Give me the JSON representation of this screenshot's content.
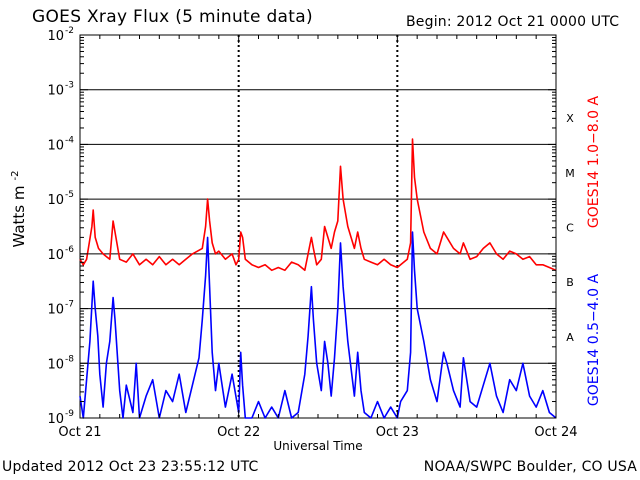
{
  "header": {
    "title": "GOES Xray Flux (5 minute data)",
    "begin": "Begin:  2012 Oct 21 0000 UTC"
  },
  "footer": {
    "updated": "Updated 2012 Oct 23 23:55:12 UTC",
    "credit": "NOAA/SWPC Boulder, CO USA"
  },
  "chart_data": {
    "type": "line",
    "title": "GOES Xray Flux (5 minute data)",
    "xlabel": "Universal Time",
    "ylabel": "Watts m",
    "ylabel_superscript": "-2",
    "y_scale": "log",
    "ylim": [
      1e-09,
      0.01
    ],
    "xlim": [
      0,
      72
    ],
    "x_unit": "hours since 2012 Oct 21 0000 UTC",
    "x_ticks": [
      {
        "label": "Oct 21",
        "hour": 0
      },
      {
        "label": "Oct 22",
        "hour": 24
      },
      {
        "label": "Oct 23",
        "hour": 48
      },
      {
        "label": "Oct 24",
        "hour": 72
      }
    ],
    "y_ticks": [
      {
        "mantissa": "10",
        "exp": "-9"
      },
      {
        "mantissa": "10",
        "exp": "-8"
      },
      {
        "mantissa": "10",
        "exp": "-7"
      },
      {
        "mantissa": "10",
        "exp": "-6"
      },
      {
        "mantissa": "10",
        "exp": "-5"
      },
      {
        "mantissa": "10",
        "exp": "-4"
      },
      {
        "mantissa": "10",
        "exp": "-3"
      },
      {
        "mantissa": "10",
        "exp": "-2"
      }
    ],
    "flare_classes": [
      "A",
      "B",
      "C",
      "M",
      "X"
    ],
    "grid": true,
    "series": [
      {
        "name": "GOES14 1.0−8.0 A",
        "color": "#ff0000",
        "log10_values": [
          [
            0.0,
            -6.1
          ],
          [
            0.5,
            -6.2
          ],
          [
            1.0,
            -6.1
          ],
          [
            1.8,
            -5.5
          ],
          [
            2.0,
            -5.2
          ],
          [
            2.3,
            -5.7
          ],
          [
            2.8,
            -5.9
          ],
          [
            3.5,
            -6.0
          ],
          [
            4.0,
            -6.05
          ],
          [
            4.5,
            -6.1
          ],
          [
            5.0,
            -5.4
          ],
          [
            5.3,
            -5.6
          ],
          [
            6.0,
            -6.1
          ],
          [
            7.0,
            -6.15
          ],
          [
            8.0,
            -6.0
          ],
          [
            9.0,
            -6.2
          ],
          [
            10.0,
            -6.1
          ],
          [
            11.0,
            -6.2
          ],
          [
            12.0,
            -6.05
          ],
          [
            13.0,
            -6.2
          ],
          [
            14.0,
            -6.1
          ],
          [
            15.0,
            -6.2
          ],
          [
            16.0,
            -6.1
          ],
          [
            17.0,
            -6.0
          ],
          [
            18.5,
            -5.9
          ],
          [
            19.0,
            -5.5
          ],
          [
            19.3,
            -5.0
          ],
          [
            19.6,
            -5.4
          ],
          [
            20.0,
            -5.8
          ],
          [
            20.5,
            -6.0
          ],
          [
            21.0,
            -5.95
          ],
          [
            22.0,
            -6.1
          ],
          [
            23.0,
            -6.0
          ],
          [
            23.6,
            -6.2
          ],
          [
            24.0,
            -6.1
          ],
          [
            24.3,
            -5.6
          ],
          [
            24.6,
            -5.7
          ],
          [
            25.0,
            -6.1
          ],
          [
            26.0,
            -6.2
          ],
          [
            27.0,
            -6.25
          ],
          [
            28.0,
            -6.2
          ],
          [
            29.0,
            -6.3
          ],
          [
            30.0,
            -6.25
          ],
          [
            31.0,
            -6.3
          ],
          [
            32.0,
            -6.15
          ],
          [
            33.0,
            -6.2
          ],
          [
            34.0,
            -6.3
          ],
          [
            34.5,
            -6.0
          ],
          [
            35.0,
            -5.7
          ],
          [
            35.3,
            -5.9
          ],
          [
            35.8,
            -6.2
          ],
          [
            36.5,
            -6.1
          ],
          [
            37.0,
            -5.5
          ],
          [
            37.5,
            -5.7
          ],
          [
            38.0,
            -5.9
          ],
          [
            38.5,
            -5.6
          ],
          [
            39.0,
            -5.4
          ],
          [
            39.4,
            -4.4
          ],
          [
            39.8,
            -5.0
          ],
          [
            40.5,
            -5.5
          ],
          [
            41.5,
            -5.9
          ],
          [
            42.0,
            -5.6
          ],
          [
            42.5,
            -5.9
          ],
          [
            43.0,
            -6.1
          ],
          [
            44.0,
            -6.15
          ],
          [
            45.0,
            -6.2
          ],
          [
            46.0,
            -6.1
          ],
          [
            47.0,
            -6.2
          ],
          [
            48.0,
            -6.25
          ],
          [
            48.5,
            -6.2
          ],
          [
            49.5,
            -6.1
          ],
          [
            50.0,
            -5.8
          ],
          [
            50.3,
            -3.9
          ],
          [
            50.6,
            -4.6
          ],
          [
            51.0,
            -5.0
          ],
          [
            52.0,
            -5.6
          ],
          [
            53.0,
            -5.9
          ],
          [
            54.0,
            -6.0
          ],
          [
            55.0,
            -5.6
          ],
          [
            55.5,
            -5.7
          ],
          [
            56.5,
            -5.9
          ],
          [
            57.5,
            -6.0
          ],
          [
            58.0,
            -5.8
          ],
          [
            59.0,
            -6.1
          ],
          [
            60.0,
            -6.05
          ],
          [
            61.0,
            -5.9
          ],
          [
            62.0,
            -5.8
          ],
          [
            63.0,
            -6.0
          ],
          [
            64.0,
            -6.1
          ],
          [
            65.0,
            -5.95
          ],
          [
            66.0,
            -6.0
          ],
          [
            67.0,
            -6.1
          ],
          [
            68.0,
            -6.05
          ],
          [
            69.0,
            -6.2
          ],
          [
            70.0,
            -6.2
          ],
          [
            71.0,
            -6.25
          ],
          [
            72.0,
            -6.3
          ]
        ]
      },
      {
        "name": "GOES14 0.5−4.0 A",
        "color": "#0000ff",
        "log10_values": [
          [
            0.0,
            -8.6
          ],
          [
            0.5,
            -9.0
          ],
          [
            1.0,
            -8.3
          ],
          [
            1.5,
            -7.6
          ],
          [
            2.0,
            -6.5
          ],
          [
            2.3,
            -7.0
          ],
          [
            2.7,
            -7.5
          ],
          [
            3.0,
            -8.2
          ],
          [
            3.5,
            -8.8
          ],
          [
            4.0,
            -8.0
          ],
          [
            4.5,
            -7.6
          ],
          [
            5.0,
            -6.8
          ],
          [
            5.3,
            -7.2
          ],
          [
            6.0,
            -8.5
          ],
          [
            6.5,
            -9.0
          ],
          [
            7.0,
            -8.4
          ],
          [
            8.0,
            -8.9
          ],
          [
            8.5,
            -8.0
          ],
          [
            9.0,
            -9.0
          ],
          [
            10.0,
            -8.6
          ],
          [
            11.0,
            -8.3
          ],
          [
            12.0,
            -9.0
          ],
          [
            13.0,
            -8.5
          ],
          [
            14.0,
            -8.7
          ],
          [
            15.0,
            -8.2
          ],
          [
            16.0,
            -8.9
          ],
          [
            17.0,
            -8.4
          ],
          [
            18.0,
            -7.9
          ],
          [
            18.5,
            -7.2
          ],
          [
            19.0,
            -6.4
          ],
          [
            19.3,
            -5.7
          ],
          [
            19.6,
            -6.6
          ],
          [
            20.0,
            -7.8
          ],
          [
            20.5,
            -8.5
          ],
          [
            21.0,
            -8.0
          ],
          [
            22.0,
            -8.8
          ],
          [
            23.0,
            -8.2
          ],
          [
            24.0,
            -8.9
          ],
          [
            24.3,
            -7.8
          ],
          [
            24.6,
            -8.4
          ],
          [
            25.0,
            -9.0
          ],
          [
            26.0,
            -9.0
          ],
          [
            27.0,
            -8.7
          ],
          [
            28.0,
            -9.0
          ],
          [
            29.0,
            -8.8
          ],
          [
            30.0,
            -9.0
          ],
          [
            31.0,
            -8.5
          ],
          [
            32.0,
            -9.0
          ],
          [
            33.0,
            -8.9
          ],
          [
            34.0,
            -8.2
          ],
          [
            34.5,
            -7.5
          ],
          [
            35.0,
            -6.6
          ],
          [
            35.3,
            -7.2
          ],
          [
            35.8,
            -8.0
          ],
          [
            36.5,
            -8.5
          ],
          [
            37.0,
            -7.6
          ],
          [
            37.5,
            -8.0
          ],
          [
            38.0,
            -8.6
          ],
          [
            38.5,
            -7.9
          ],
          [
            39.0,
            -7.0
          ],
          [
            39.4,
            -5.8
          ],
          [
            39.8,
            -6.6
          ],
          [
            40.5,
            -7.6
          ],
          [
            41.5,
            -8.6
          ],
          [
            42.0,
            -7.8
          ],
          [
            42.5,
            -8.5
          ],
          [
            43.0,
            -8.9
          ],
          [
            44.0,
            -9.0
          ],
          [
            45.0,
            -8.7
          ],
          [
            46.0,
            -9.0
          ],
          [
            47.0,
            -8.8
          ],
          [
            48.0,
            -9.0
          ],
          [
            48.5,
            -8.7
          ],
          [
            49.5,
            -8.5
          ],
          [
            50.0,
            -7.8
          ],
          [
            50.3,
            -5.6
          ],
          [
            50.6,
            -6.3
          ],
          [
            51.0,
            -7.0
          ],
          [
            52.0,
            -7.6
          ],
          [
            53.0,
            -8.3
          ],
          [
            54.0,
            -8.7
          ],
          [
            55.0,
            -7.8
          ],
          [
            55.5,
            -8.0
          ],
          [
            56.5,
            -8.5
          ],
          [
            57.5,
            -8.8
          ],
          [
            58.0,
            -7.9
          ],
          [
            59.0,
            -8.7
          ],
          [
            60.0,
            -8.8
          ],
          [
            61.0,
            -8.4
          ],
          [
            62.0,
            -8.0
          ],
          [
            63.0,
            -8.6
          ],
          [
            64.0,
            -8.9
          ],
          [
            65.0,
            -8.3
          ],
          [
            66.0,
            -8.5
          ],
          [
            67.0,
            -8.0
          ],
          [
            68.0,
            -8.6
          ],
          [
            69.0,
            -8.8
          ],
          [
            70.0,
            -8.5
          ],
          [
            71.0,
            -8.9
          ],
          [
            72.0,
            -9.0
          ]
        ]
      }
    ]
  }
}
